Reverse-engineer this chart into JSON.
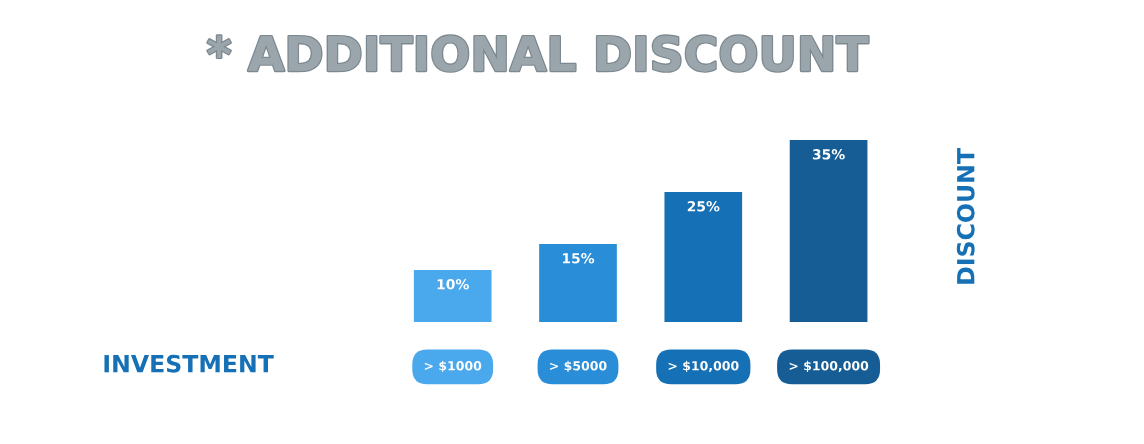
{
  "chart_data": {
    "type": "bar",
    "title": "* ADDITIONAL DISCOUNT",
    "xlabel": "INVESTMENT",
    "ylabel": "DISCOUNT",
    "categories": [
      "> $1000",
      "> $5000",
      "> $10,000",
      "> $100,000"
    ],
    "values": [
      10,
      15,
      25,
      35
    ],
    "colors": [
      "#4aa8ec",
      "#2a8dd8",
      "#1670b5",
      "#155d94"
    ],
    "value_labels": [
      "10%",
      "15%",
      "25%",
      "35%"
    ],
    "tick_labels": "x",
    "grid": false,
    "legend": false
  }
}
